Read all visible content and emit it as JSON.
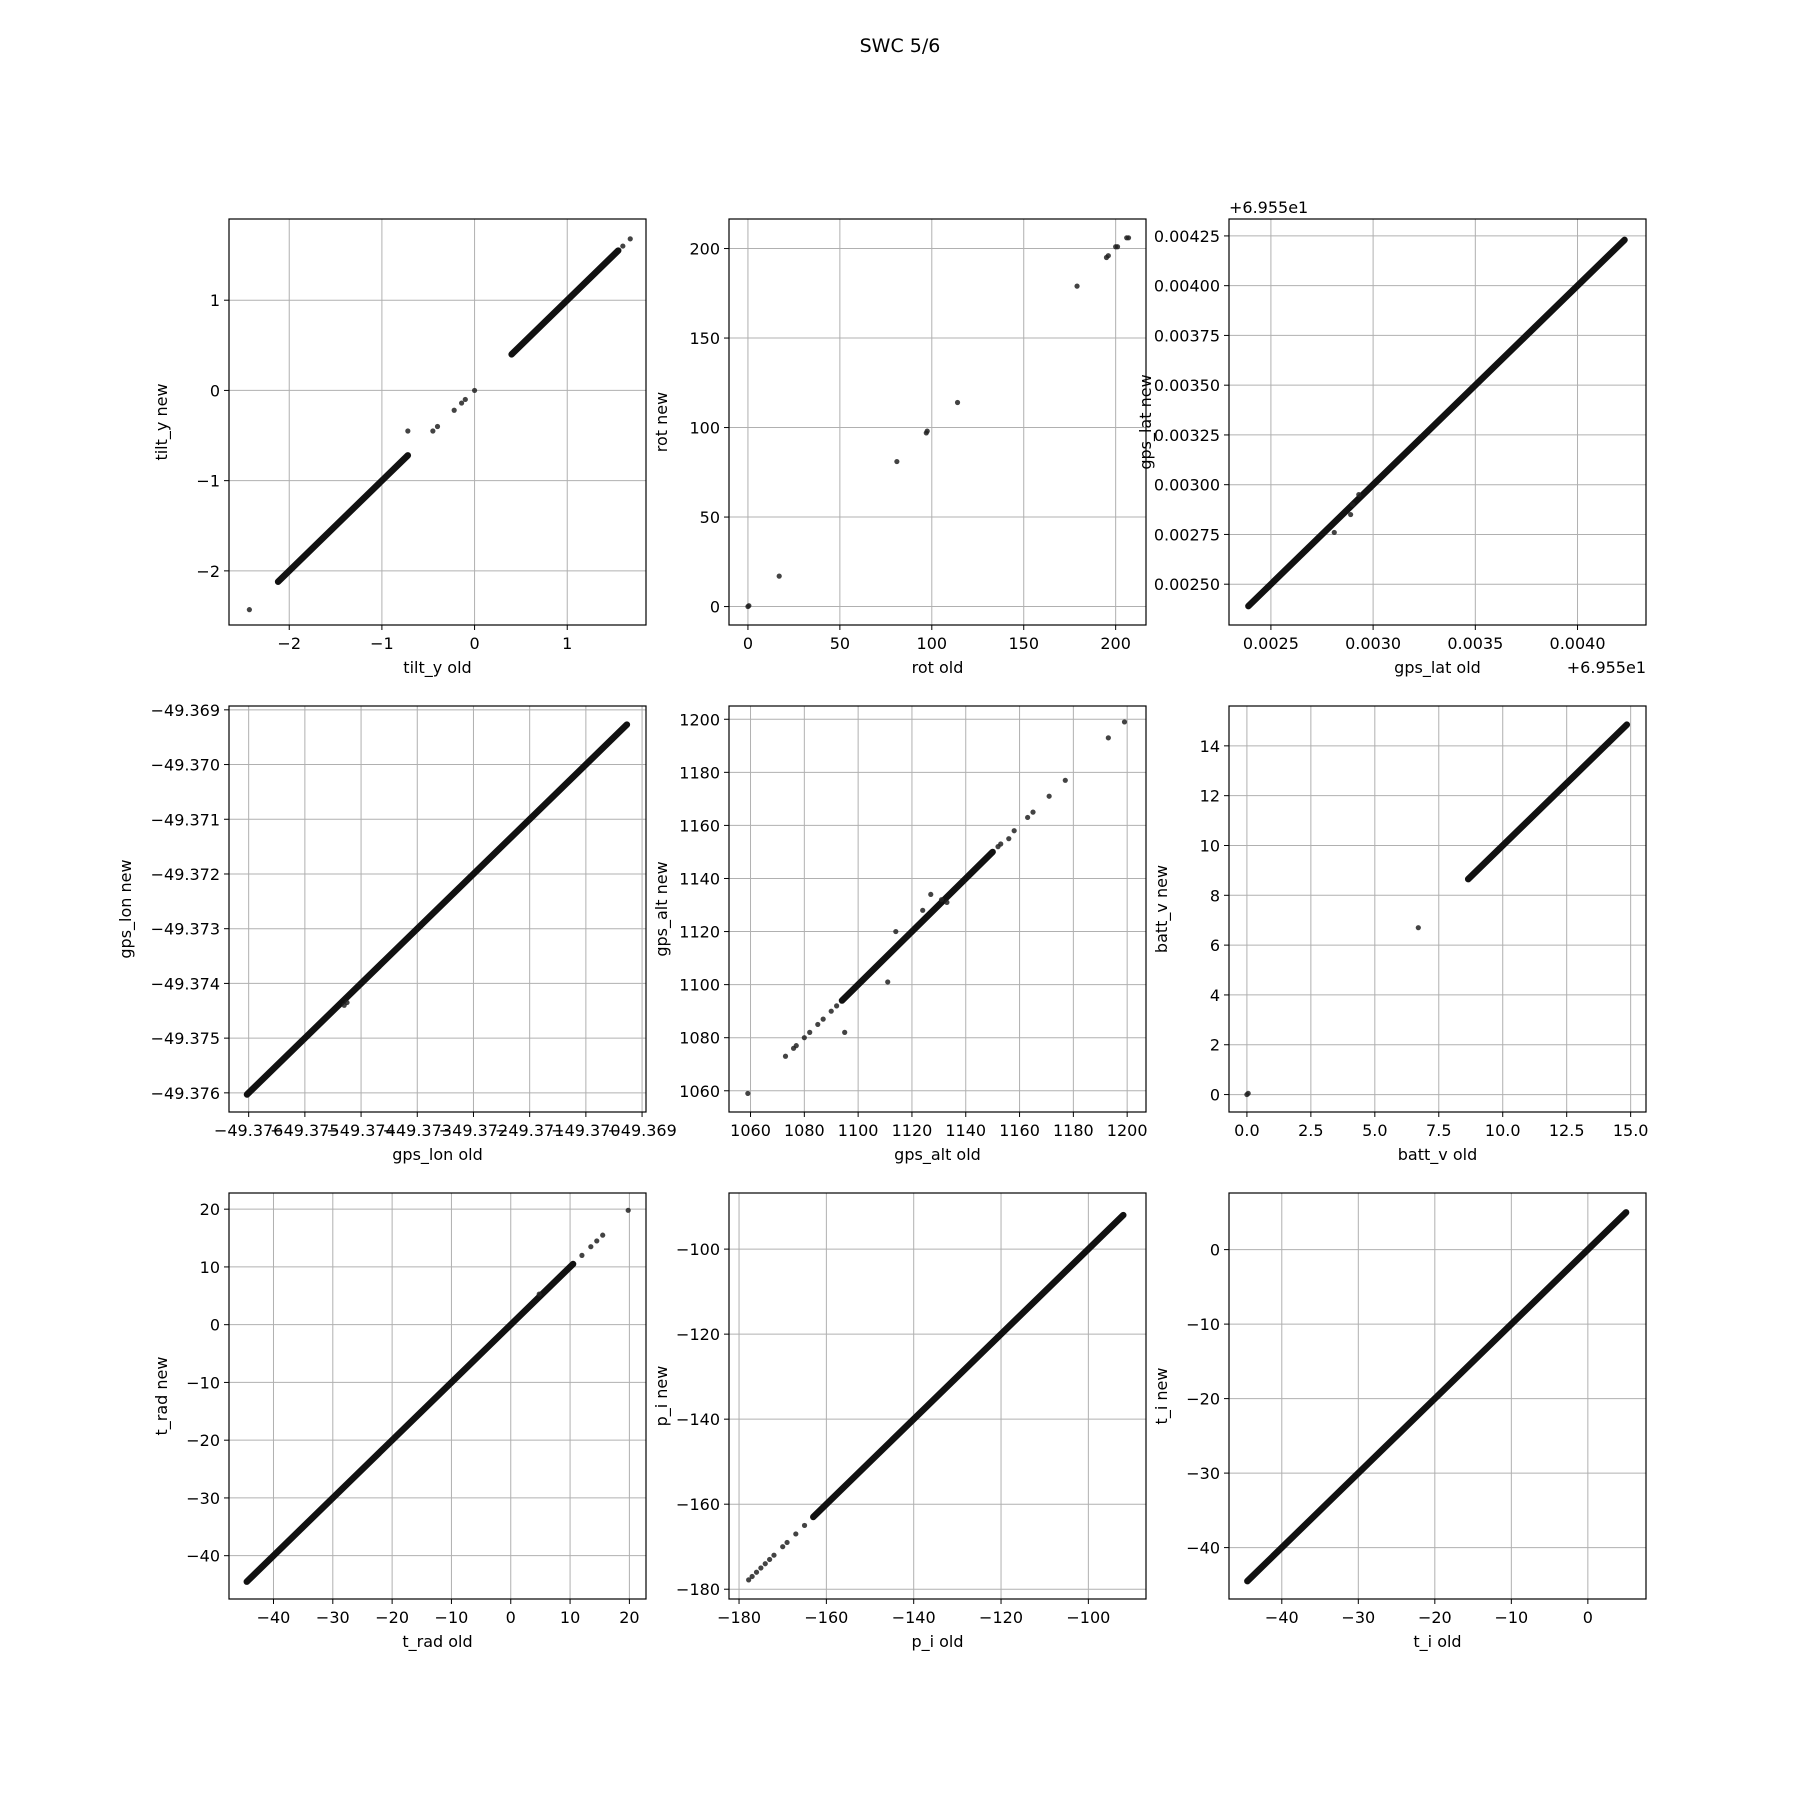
{
  "figure": {
    "title": "SWC 5/6"
  },
  "chart_data": [
    {
      "type": "scatter",
      "xlabel": "tilt_y old",
      "ylabel": "tilt_y new",
      "xlim": [
        -2.65,
        1.85
      ],
      "ylim": [
        -2.6,
        1.9
      ],
      "xticks": [
        -2,
        -1,
        0,
        1
      ],
      "xtick_labels": [
        "−2",
        "−1",
        "0",
        "1"
      ],
      "yticks": [
        -2,
        -1,
        0,
        1
      ],
      "ytick_labels": [
        "−2",
        "−1",
        "0",
        "1"
      ],
      "grid": true,
      "segments": [
        [
          -2.12,
          -2.12,
          -0.72,
          -0.72
        ],
        [
          0.4,
          0.4,
          1.55,
          1.55
        ]
      ],
      "points": [
        [
          -2.43,
          -2.43
        ],
        [
          -0.72,
          -0.45
        ],
        [
          -0.45,
          -0.45
        ],
        [
          -0.4,
          -0.4
        ],
        [
          -0.22,
          -0.22
        ],
        [
          -0.14,
          -0.14
        ],
        [
          -0.1,
          -0.1
        ],
        [
          0,
          0
        ],
        [
          1.6,
          1.6
        ],
        [
          1.68,
          1.68
        ]
      ]
    },
    {
      "type": "scatter",
      "xlabel": "rot old",
      "ylabel": "rot new",
      "xlim": [
        -10.3,
        216.5
      ],
      "ylim": [
        -10.3,
        216.5
      ],
      "xticks": [
        0,
        50,
        100,
        150,
        200
      ],
      "xtick_labels": [
        "0",
        "50",
        "100",
        "150",
        "200"
      ],
      "yticks": [
        0,
        50,
        100,
        150,
        200
      ],
      "ytick_labels": [
        "0",
        "50",
        "100",
        "150",
        "200"
      ],
      "grid": true,
      "segments": [],
      "points": [
        [
          0,
          0
        ],
        [
          0.5,
          0.5
        ],
        [
          17,
          17
        ],
        [
          81,
          81
        ],
        [
          97,
          97
        ],
        [
          97.5,
          98
        ],
        [
          114,
          114
        ],
        [
          179,
          179
        ],
        [
          195,
          195
        ],
        [
          196,
          196
        ],
        [
          200,
          201
        ],
        [
          201,
          201
        ],
        [
          206,
          206
        ],
        [
          207,
          206
        ]
      ]
    },
    {
      "type": "scatter",
      "xlabel": "gps_lat old",
      "ylabel": "gps_lat new",
      "offset_text_x": "+6.955e1",
      "offset_text_y": "+6.955e1",
      "xlim": [
        0.002295,
        0.004335
      ],
      "ylim": [
        0.002295,
        0.004335
      ],
      "xticks": [
        0.0025,
        0.003,
        0.0035,
        0.004
      ],
      "xtick_labels": [
        "0.0025",
        "0.0030",
        "0.0035",
        "0.0040"
      ],
      "yticks": [
        0.0025,
        0.00275,
        0.003,
        0.00325,
        0.0035,
        0.00375,
        0.004,
        0.00425
      ],
      "ytick_labels": [
        "0.00250",
        "0.00275",
        "0.00300",
        "0.00325",
        "0.00350",
        "0.00375",
        "0.00400",
        "0.00425"
      ],
      "grid": true,
      "segments": [
        [
          0.00239,
          0.00239,
          0.00423,
          0.00423
        ]
      ],
      "points": [
        [
          0.00281,
          0.00276
        ],
        [
          0.00289,
          0.00285
        ],
        [
          0.0029,
          0.0029
        ],
        [
          0.00293,
          0.00295
        ]
      ]
    },
    {
      "type": "scatter",
      "xlabel": "gps_lon old",
      "ylabel": "gps_lon new",
      "xlim": [
        -49.37635,
        -49.36893
      ],
      "ylim": [
        -49.37635,
        -49.36893
      ],
      "xticks": [
        -49.376,
        -49.375,
        -49.374,
        -49.373,
        -49.372,
        -49.371,
        -49.37,
        -49.369
      ],
      "xtick_labels": [
        "−49.376",
        "−49.375",
        "−49.374",
        "−49.373",
        "−49.372",
        "−49.371",
        "−49.370",
        "−49.369"
      ],
      "yticks": [
        -49.376,
        -49.375,
        -49.374,
        -49.373,
        -49.372,
        -49.371,
        -49.37,
        -49.369
      ],
      "ytick_labels": [
        "−49.376",
        "−49.375",
        "−49.374",
        "−49.373",
        "−49.372",
        "−49.371",
        "−49.370",
        "−49.369"
      ],
      "grid": true,
      "segments": [
        [
          -49.37603,
          -49.37603,
          -49.36927,
          -49.36927
        ]
      ],
      "points": [
        [
          -49.37425,
          -49.37435
        ],
        [
          -49.3743,
          -49.3744
        ]
      ]
    },
    {
      "type": "scatter",
      "xlabel": "gps_alt old",
      "ylabel": "gps_alt new",
      "xlim": [
        1052,
        1207
      ],
      "ylim": [
        1052,
        1205
      ],
      "xticks": [
        1060,
        1080,
        1100,
        1120,
        1140,
        1160,
        1180,
        1200
      ],
      "xtick_labels": [
        "1060",
        "1080",
        "1100",
        "1120",
        "1140",
        "1160",
        "1180",
        "1200"
      ],
      "yticks": [
        1060,
        1080,
        1100,
        1120,
        1140,
        1160,
        1180,
        1200
      ],
      "ytick_labels": [
        "1060",
        "1080",
        "1100",
        "1120",
        "1140",
        "1160",
        "1180",
        "1200"
      ],
      "grid": true,
      "segments": [
        [
          1094,
          1094,
          1150,
          1150
        ]
      ],
      "points": [
        [
          1059,
          1059
        ],
        [
          1073,
          1073
        ],
        [
          1076,
          1076
        ],
        [
          1077,
          1077
        ],
        [
          1080,
          1080
        ],
        [
          1082,
          1082
        ],
        [
          1085,
          1085
        ],
        [
          1087,
          1087
        ],
        [
          1090,
          1090
        ],
        [
          1092,
          1092
        ],
        [
          1095,
          1082
        ],
        [
          1111,
          1101
        ],
        [
          1114,
          1120
        ],
        [
          1124,
          1128
        ],
        [
          1127,
          1134
        ],
        [
          1131,
          1132
        ],
        [
          1133,
          1131
        ],
        [
          1152,
          1152
        ],
        [
          1153,
          1153
        ],
        [
          1156,
          1155
        ],
        [
          1158,
          1158
        ],
        [
          1163,
          1163
        ],
        [
          1165,
          1165
        ],
        [
          1171,
          1171
        ],
        [
          1177,
          1177
        ],
        [
          1193,
          1193
        ],
        [
          1199,
          1199
        ]
      ]
    },
    {
      "type": "scatter",
      "xlabel": "batt_v old",
      "ylabel": "batt_v new",
      "xlim": [
        -0.7,
        15.6
      ],
      "ylim": [
        -0.7,
        15.6
      ],
      "xticks": [
        0,
        2.5,
        5,
        7.5,
        10,
        12.5,
        15
      ],
      "xtick_labels": [
        "0.0",
        "2.5",
        "5.0",
        "7.5",
        "10.0",
        "12.5",
        "15.0"
      ],
      "yticks": [
        0,
        2,
        4,
        6,
        8,
        10,
        12,
        14
      ],
      "ytick_labels": [
        "0",
        "2",
        "4",
        "6",
        "8",
        "10",
        "12",
        "14"
      ],
      "grid": true,
      "segments": [
        [
          8.65,
          8.65,
          14.85,
          14.85
        ]
      ],
      "points": [
        [
          0,
          0
        ],
        [
          0.05,
          0.05
        ],
        [
          6.7,
          6.7
        ]
      ]
    },
    {
      "type": "scatter",
      "xlabel": "t_rad old",
      "ylabel": "t_rad new",
      "xlim": [
        -47.5,
        22.8
      ],
      "ylim": [
        -47.5,
        22.8
      ],
      "xticks": [
        -40,
        -30,
        -20,
        -10,
        0,
        10,
        20
      ],
      "xtick_labels": [
        "−40",
        "−30",
        "−20",
        "−10",
        "0",
        "10",
        "20"
      ],
      "yticks": [
        -40,
        -30,
        -20,
        -10,
        0,
        10,
        20
      ],
      "ytick_labels": [
        "−40",
        "−30",
        "−20",
        "−10",
        "0",
        "10",
        "20"
      ],
      "grid": true,
      "segments": [
        [
          -44.5,
          -44.5,
          10.5,
          10.5
        ]
      ],
      "points": [
        [
          12,
          12
        ],
        [
          13.5,
          13.5
        ],
        [
          14.5,
          14.5
        ],
        [
          15.5,
          15.5
        ],
        [
          19.8,
          19.8
        ],
        [
          4.8,
          5.3
        ]
      ]
    },
    {
      "type": "scatter",
      "xlabel": "p_i old",
      "ylabel": "p_i new",
      "xlim": [
        -182.3,
        -86.8
      ],
      "ylim": [
        -182.3,
        -86.8
      ],
      "xticks": [
        -180,
        -160,
        -140,
        -120,
        -100
      ],
      "xtick_labels": [
        "−180",
        "−160",
        "−140",
        "−120",
        "−100"
      ],
      "yticks": [
        -180,
        -160,
        -140,
        -120,
        -100
      ],
      "ytick_labels": [
        "−180",
        "−160",
        "−140",
        "−120",
        "−100"
      ],
      "grid": true,
      "segments": [
        [
          -163,
          -163,
          -92,
          -92
        ]
      ],
      "points": [
        [
          -177.8,
          -177.8
        ],
        [
          -177,
          -177
        ],
        [
          -176,
          -176
        ],
        [
          -175,
          -175
        ],
        [
          -174,
          -174
        ],
        [
          -173,
          -173
        ],
        [
          -172,
          -172
        ],
        [
          -170,
          -170
        ],
        [
          -169,
          -169
        ],
        [
          -167,
          -167
        ],
        [
          -165,
          -165
        ]
      ]
    },
    {
      "type": "scatter",
      "xlabel": "t_i old",
      "ylabel": "t_i new",
      "xlim": [
        -46.9,
        7.6
      ],
      "ylim": [
        -46.9,
        7.6
      ],
      "xticks": [
        -40,
        -30,
        -20,
        -10,
        0
      ],
      "xtick_labels": [
        "−40",
        "−30",
        "−20",
        "−10",
        "0"
      ],
      "yticks": [
        -40,
        -30,
        -20,
        -10,
        0
      ],
      "ytick_labels": [
        "−40",
        "−30",
        "−20",
        "−10",
        "0"
      ],
      "grid": true,
      "segments": [
        [
          -44.5,
          -44.5,
          5,
          5
        ]
      ],
      "points": []
    }
  ]
}
